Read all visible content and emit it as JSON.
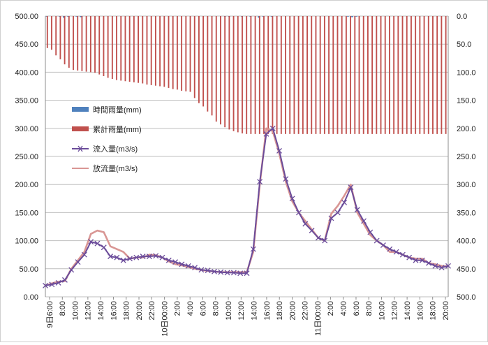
{
  "chart_data": {
    "type": "line",
    "left_axis": {
      "min": 0,
      "max": 500,
      "step": 50,
      "tick_labels": [
        "0.00",
        "50.00",
        "100.00",
        "150.00",
        "200.00",
        "250.00",
        "300.00",
        "350.00",
        "400.00",
        "450.00",
        "500.00"
      ]
    },
    "right_axis": {
      "min": 0,
      "max": 500,
      "step": 50,
      "reversed": true,
      "tick_labels": [
        "0.0",
        "50.0",
        "100.0",
        "150.0",
        "200.0",
        "250.0",
        "300.0",
        "350.0",
        "400.0",
        "450.0",
        "500.0"
      ]
    },
    "grid": true,
    "legend_position": "left",
    "x_start_label": "9日6:00",
    "x_tick_labels": [
      "8:00",
      "10:00",
      "12:00",
      "14:00",
      "16:00",
      "18:00",
      "20:00",
      "22:00",
      "10日00:00",
      "2:00",
      "4:00",
      "6:00",
      "8:00",
      "10:00",
      "12:00",
      "14:00",
      "16:00",
      "18:00",
      "20:00",
      "22:00",
      "11日00:00",
      "2:00",
      "4:00",
      "6:00",
      "8:00",
      "10:00",
      "12:00",
      "14:00",
      "16:00",
      "18:00",
      "20:00"
    ],
    "series": [
      {
        "name": "時間雨量(mm)",
        "axis": "right",
        "kind": "bar-down",
        "color": "#4f81bd",
        "values": [
          1,
          0,
          0,
          1,
          3,
          1,
          0,
          1,
          2,
          0,
          0,
          0,
          0,
          0,
          0,
          0,
          0,
          0,
          0,
          0,
          0,
          0,
          0,
          0,
          0,
          0,
          0,
          0,
          0,
          0,
          0,
          0,
          0,
          0,
          0,
          0,
          0,
          0,
          0,
          0,
          0,
          0,
          1,
          1,
          0,
          0,
          1,
          0,
          1,
          0,
          3,
          1,
          0,
          1,
          0,
          0,
          0,
          0,
          0,
          0,
          0,
          0,
          0,
          0,
          0,
          0,
          0,
          0,
          0,
          0,
          0,
          1,
          2,
          1,
          0,
          0,
          0,
          0,
          0,
          0,
          0,
          0,
          0,
          0,
          0,
          0,
          0,
          0,
          0,
          0,
          0,
          0,
          0,
          0,
          0
        ]
      },
      {
        "name": "累計雨量(mm)",
        "axis": "right",
        "kind": "bar-down",
        "color": "#c0504d",
        "values": [
          57,
          60,
          70,
          77,
          86,
          92,
          96,
          97,
          98,
          99,
          100,
          101,
          104,
          107,
          110,
          112,
          114,
          115,
          116,
          117,
          118,
          119,
          120,
          122,
          123,
          124,
          125,
          126,
          128,
          130,
          131,
          133,
          134,
          135,
          146,
          155,
          161,
          170,
          177,
          188,
          193,
          198,
          202,
          205,
          207,
          209,
          210,
          210,
          210,
          210,
          210,
          210,
          210,
          210,
          210,
          210,
          210,
          210,
          210,
          210,
          210,
          210,
          210,
          210,
          210,
          210,
          210,
          210,
          210,
          210,
          210,
          210,
          210,
          210,
          210,
          210,
          210,
          210,
          210,
          210,
          210,
          210,
          210,
          210,
          210,
          210,
          210,
          210,
          210,
          210,
          210,
          210,
          210
        ]
      },
      {
        "name": "流入量(m3/s)",
        "axis": "left",
        "kind": "line",
        "color": "#6b4c9a",
        "values": [
          20,
          22,
          25,
          30,
          48,
          62,
          75,
          98,
          95,
          88,
          72,
          70,
          65,
          68,
          70,
          72,
          72,
          73,
          70,
          65,
          62,
          58,
          55,
          52,
          48,
          47,
          45,
          44,
          43,
          43,
          42,
          42,
          85,
          205,
          290,
          300,
          260,
          210,
          175,
          150,
          130,
          118,
          105,
          100,
          140,
          150,
          168,
          195,
          155,
          135,
          115,
          100,
          92,
          85,
          80,
          75,
          70,
          65,
          65,
          60,
          55,
          52,
          55
        ]
      },
      {
        "name": "放流量(m3/s)",
        "axis": "left",
        "kind": "line",
        "color": "#d99694",
        "values": [
          20,
          24,
          27,
          28,
          50,
          65,
          80,
          112,
          118,
          115,
          90,
          85,
          80,
          68,
          70,
          70,
          75,
          74,
          70,
          63,
          58,
          56,
          53,
          50,
          48,
          46,
          45,
          44,
          44,
          44,
          44,
          44,
          80,
          200,
          300,
          295,
          255,
          205,
          170,
          150,
          135,
          120,
          105,
          100,
          148,
          162,
          180,
          200,
          150,
          130,
          110,
          100,
          92,
          80,
          80,
          75,
          70,
          68,
          68,
          60,
          58,
          55,
          54
        ]
      }
    ]
  }
}
